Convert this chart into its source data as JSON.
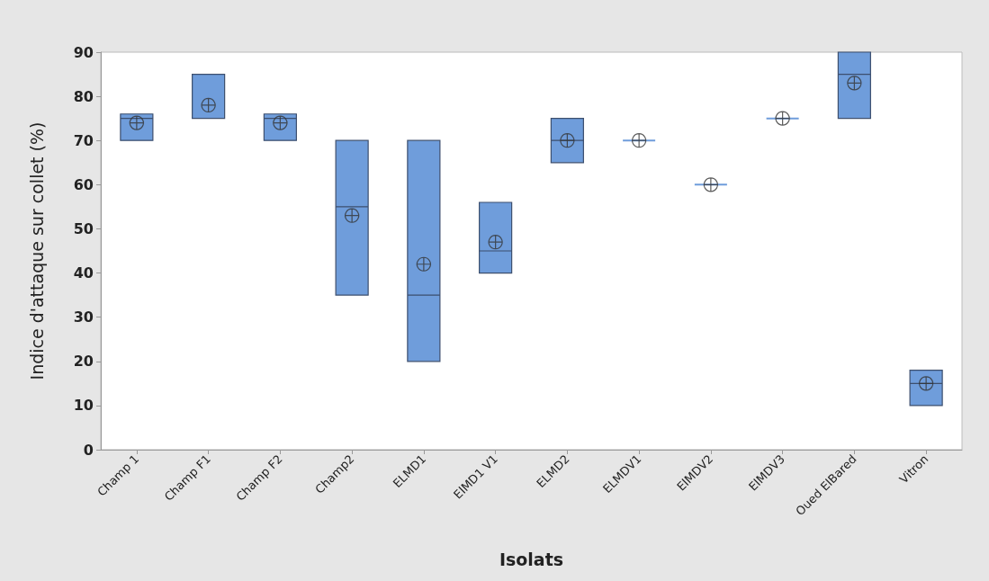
{
  "chart_data": {
    "type": "box",
    "xlabel": "Isolats",
    "ylabel": "Indice d'attaque sur collet (%)",
    "categories": [
      "Champ 1",
      "Champ F1",
      "Champ F2",
      "Champ2",
      "ELMD1",
      "ElMD1 V1",
      "ELMD2",
      "ELMDV1",
      "ElMDV2",
      "ElMDV3",
      "Oued ElBared",
      "Vitron"
    ],
    "color": "#6f9ddb",
    "boxes": [
      {
        "low": 70,
        "q1": 70,
        "median": 75,
        "q3": 76,
        "high": 76,
        "mean": 74
      },
      {
        "low": 75,
        "q1": 75,
        "median": 75,
        "q3": 85,
        "high": 85,
        "mean": 78
      },
      {
        "low": 70,
        "q1": 70,
        "median": 75,
        "q3": 76,
        "high": 76,
        "mean": 74
      },
      {
        "low": 35,
        "q1": 35,
        "median": 55,
        "q3": 70,
        "high": 70,
        "mean": 53
      },
      {
        "low": 20,
        "q1": 20,
        "median": 35,
        "q3": 70,
        "high": 70,
        "mean": 42
      },
      {
        "low": 40,
        "q1": 40,
        "median": 45,
        "q3": 56,
        "high": 56,
        "mean": 47
      },
      {
        "low": 65,
        "q1": 65,
        "median": 70,
        "q3": 75,
        "high": 75,
        "mean": 70
      },
      {
        "low": 70,
        "q1": 70,
        "median": 70,
        "q3": 70,
        "high": 70,
        "mean": 70
      },
      {
        "low": 60,
        "q1": 60,
        "median": 60,
        "q3": 60,
        "high": 60,
        "mean": 60
      },
      {
        "low": 75,
        "q1": 75,
        "median": 75,
        "q3": 75,
        "high": 75,
        "mean": 75
      },
      {
        "low": 75,
        "q1": 75,
        "median": 85,
        "q3": 90,
        "high": 90,
        "mean": 83
      },
      {
        "low": 10,
        "q1": 10,
        "median": 15,
        "q3": 18,
        "high": 18,
        "mean": 15
      }
    ],
    "ylim": [
      0,
      90
    ],
    "yticks": [
      0,
      10,
      20,
      30,
      40,
      50,
      60,
      70,
      80,
      90
    ]
  }
}
